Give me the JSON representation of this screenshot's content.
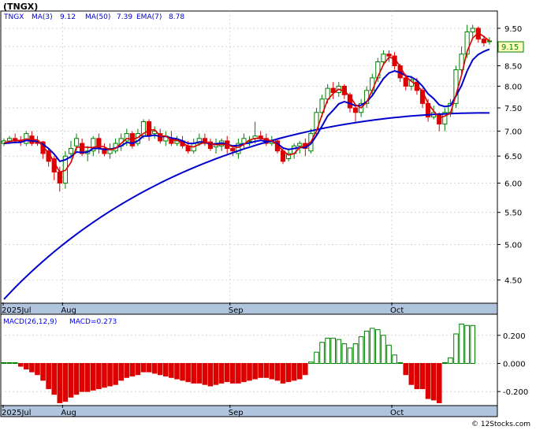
{
  "title": "(TNGX)",
  "footer": "© 12Stocks.com",
  "colors": {
    "up": "#008000",
    "down": "#dd0000",
    "ma_short": "#dd0000",
    "ma_long": "#0000cc",
    "ema": "#0000cc",
    "axis_band": "#b0c4de",
    "grid": "#bbbbbb",
    "price_tag_bg": "#ffffc0",
    "legend_text": "#0000cc",
    "macd_label_text": "#0000ff"
  },
  "chart_data": [
    {
      "type": "candlestick",
      "ticker": "TNGX",
      "legend": {
        "ticker": "TNGX",
        "ma3": "MA(3)",
        "ma3_value": "9.12",
        "ma50": "MA(50)",
        "ma50_value": "7.39",
        "ema7": "EMA(7)",
        "ema7_value": "8.78"
      },
      "last_price_label": "9.15",
      "last_price": 9.15,
      "scale": "log",
      "ylim": [
        4.2,
        10.0
      ],
      "y_ticks": [
        "9.50",
        "9.00",
        "8.50",
        "8.00",
        "7.50",
        "7.00",
        "6.50",
        "6.00",
        "5.50",
        "5.00",
        "4.50"
      ],
      "x_tick_labels": [
        {
          "label": "2025Jul",
          "index": 0
        },
        {
          "label": "Aug",
          "index": 11
        },
        {
          "label": "Sep",
          "index": 41
        },
        {
          "label": "Oct",
          "index": 70
        }
      ],
      "candles": [
        [
          6.75,
          6.8,
          6.7,
          6.85
        ],
        [
          6.8,
          6.85,
          6.75,
          6.9
        ],
        [
          6.85,
          6.8,
          6.75,
          6.95
        ],
        [
          6.8,
          6.78,
          6.7,
          6.9
        ],
        [
          6.75,
          6.95,
          6.7,
          7.0
        ],
        [
          6.9,
          6.75,
          6.7,
          7.0
        ],
        [
          6.8,
          6.75,
          6.7,
          6.9
        ],
        [
          6.78,
          6.55,
          6.45,
          6.8
        ],
        [
          6.6,
          6.4,
          6.3,
          6.65
        ],
        [
          6.45,
          6.2,
          6.05,
          6.5
        ],
        [
          6.2,
          6.0,
          5.85,
          6.3
        ],
        [
          6.0,
          6.5,
          5.9,
          6.6
        ],
        [
          6.55,
          6.65,
          6.45,
          6.8
        ],
        [
          6.7,
          6.85,
          6.6,
          6.95
        ],
        [
          6.75,
          6.55,
          6.5,
          6.85
        ],
        [
          6.55,
          6.6,
          6.4,
          6.7
        ],
        [
          6.6,
          6.85,
          6.5,
          6.9
        ],
        [
          6.85,
          6.65,
          6.55,
          6.95
        ],
        [
          6.65,
          6.55,
          6.5,
          6.75
        ],
        [
          6.55,
          6.65,
          6.45,
          6.75
        ],
        [
          6.6,
          6.75,
          6.55,
          6.85
        ],
        [
          6.7,
          6.85,
          6.6,
          6.95
        ],
        [
          6.8,
          6.95,
          6.7,
          7.05
        ],
        [
          6.95,
          6.7,
          6.65,
          7.0
        ],
        [
          6.75,
          6.95,
          6.7,
          7.05
        ],
        [
          6.9,
          7.2,
          6.85,
          7.25
        ],
        [
          7.2,
          6.9,
          6.8,
          7.25
        ],
        [
          6.95,
          7.0,
          6.85,
          7.1
        ],
        [
          6.95,
          6.8,
          6.75,
          7.05
        ],
        [
          6.8,
          6.9,
          6.7,
          7.0
        ],
        [
          6.85,
          6.75,
          6.7,
          7.0
        ],
        [
          6.75,
          6.8,
          6.7,
          6.9
        ],
        [
          6.8,
          6.7,
          6.65,
          6.9
        ],
        [
          6.7,
          6.6,
          6.55,
          6.8
        ],
        [
          6.6,
          6.75,
          6.55,
          6.85
        ],
        [
          6.75,
          6.85,
          6.7,
          6.95
        ],
        [
          6.85,
          6.75,
          6.7,
          6.95
        ],
        [
          6.78,
          6.65,
          6.6,
          6.85
        ],
        [
          6.68,
          6.75,
          6.55,
          6.85
        ],
        [
          6.7,
          6.8,
          6.6,
          6.85
        ],
        [
          6.8,
          6.65,
          6.55,
          6.9
        ],
        [
          6.65,
          6.6,
          6.5,
          6.7
        ],
        [
          6.55,
          6.75,
          6.45,
          6.85
        ],
        [
          6.75,
          6.85,
          6.65,
          6.95
        ],
        [
          6.8,
          6.8,
          6.7,
          6.9
        ],
        [
          6.85,
          6.9,
          6.75,
          7.2
        ],
        [
          6.9,
          6.85,
          6.8,
          7.0
        ],
        [
          6.85,
          6.75,
          6.7,
          6.95
        ],
        [
          6.75,
          6.8,
          6.7,
          6.9
        ],
        [
          6.8,
          6.6,
          6.55,
          6.85
        ],
        [
          6.6,
          6.4,
          6.35,
          6.65
        ],
        [
          6.45,
          6.55,
          6.4,
          6.65
        ],
        [
          6.55,
          6.7,
          6.45,
          6.75
        ],
        [
          6.7,
          6.75,
          6.55,
          6.8
        ],
        [
          6.75,
          6.65,
          6.5,
          6.85
        ],
        [
          6.6,
          6.95,
          6.55,
          7.05
        ],
        [
          6.95,
          7.4,
          6.9,
          7.5
        ],
        [
          7.4,
          7.7,
          7.3,
          7.8
        ],
        [
          7.7,
          7.95,
          7.6,
          8.05
        ],
        [
          7.95,
          7.85,
          7.7,
          8.1
        ],
        [
          7.85,
          8.0,
          7.75,
          8.1
        ],
        [
          8.0,
          7.8,
          7.7,
          8.05
        ],
        [
          7.8,
          7.5,
          7.4,
          7.85
        ],
        [
          7.5,
          7.4,
          7.2,
          7.55
        ],
        [
          7.4,
          7.6,
          7.3,
          7.7
        ],
        [
          7.6,
          7.9,
          7.5,
          8.0
        ],
        [
          7.9,
          8.2,
          7.8,
          8.3
        ],
        [
          8.2,
          8.6,
          8.1,
          8.7
        ],
        [
          8.6,
          8.8,
          8.5,
          8.9
        ],
        [
          8.8,
          8.75,
          8.6,
          8.9
        ],
        [
          8.75,
          8.5,
          8.4,
          8.85
        ],
        [
          8.5,
          8.2,
          8.1,
          8.55
        ],
        [
          8.2,
          8.0,
          7.9,
          8.3
        ],
        [
          8.0,
          8.15,
          7.9,
          8.25
        ],
        [
          8.1,
          7.9,
          7.8,
          8.2
        ],
        [
          7.9,
          7.6,
          7.5,
          7.95
        ],
        [
          7.6,
          7.3,
          7.2,
          7.7
        ],
        [
          7.3,
          7.4,
          7.25,
          7.55
        ],
        [
          7.35,
          7.15,
          7.0,
          7.4
        ],
        [
          7.15,
          7.4,
          7.0,
          7.5
        ],
        [
          7.4,
          7.6,
          7.3,
          7.7
        ],
        [
          7.6,
          8.4,
          7.5,
          8.5
        ],
        [
          8.4,
          8.8,
          8.3,
          9.0
        ],
        [
          8.8,
          9.4,
          8.7,
          9.6
        ],
        [
          9.4,
          9.5,
          9.2,
          9.6
        ],
        [
          9.5,
          9.2,
          9.1,
          9.55
        ],
        [
          9.2,
          9.1,
          9.0,
          9.3
        ],
        [
          9.15,
          9.15,
          9.05,
          9.25
        ]
      ],
      "ma3": [
        6.76,
        6.79,
        6.81,
        6.81,
        6.84,
        6.83,
        6.82,
        6.68,
        6.57,
        6.38,
        6.2,
        6.23,
        6.38,
        6.67,
        6.68,
        6.67,
        6.67,
        6.7,
        6.68,
        6.62,
        6.65,
        6.75,
        6.85,
        6.83,
        6.87,
        6.95,
        7.02,
        7.03,
        6.9,
        6.9,
        6.82,
        6.82,
        6.75,
        6.7,
        6.68,
        6.73,
        6.78,
        6.75,
        6.72,
        6.73,
        6.73,
        6.68,
        6.67,
        6.73,
        6.82,
        6.85,
        6.85,
        6.83,
        6.8,
        6.72,
        6.6,
        6.52,
        6.55,
        6.67,
        6.7,
        6.78,
        7.0,
        7.35,
        7.68,
        7.83,
        7.93,
        7.88,
        7.77,
        7.57,
        7.5,
        7.63,
        7.9,
        8.23,
        8.53,
        8.72,
        8.68,
        8.48,
        8.23,
        8.12,
        8.02,
        7.88,
        7.6,
        7.43,
        7.28,
        7.32,
        7.38,
        7.8,
        8.27,
        8.87,
        9.23,
        9.37,
        9.27,
        9.15
      ],
      "ema7": [
        6.75,
        6.76,
        6.77,
        6.77,
        6.81,
        6.8,
        6.79,
        6.73,
        6.65,
        6.54,
        6.4,
        6.43,
        6.49,
        6.58,
        6.57,
        6.58,
        6.65,
        6.65,
        6.63,
        6.63,
        6.66,
        6.7,
        6.77,
        6.75,
        6.8,
        6.9,
        6.9,
        6.92,
        6.89,
        6.89,
        6.86,
        6.84,
        6.8,
        6.75,
        6.75,
        6.78,
        6.77,
        6.74,
        6.74,
        6.76,
        6.73,
        6.7,
        6.71,
        6.74,
        6.76,
        6.79,
        6.81,
        6.79,
        6.79,
        6.75,
        6.66,
        6.63,
        6.65,
        6.67,
        6.67,
        6.74,
        6.91,
        7.11,
        7.32,
        7.45,
        7.59,
        7.64,
        7.6,
        7.55,
        7.56,
        7.64,
        7.78,
        7.98,
        8.18,
        8.32,
        8.37,
        8.33,
        8.25,
        8.22,
        8.14,
        8.0,
        7.82,
        7.71,
        7.57,
        7.53,
        7.55,
        7.77,
        8.02,
        8.37,
        8.65,
        8.79,
        8.87,
        8.93
      ]
    },
    {
      "type": "bar",
      "label": "MACD(26,12,9)",
      "value_label": "MACD=0.273",
      "ylim": [
        -0.3,
        0.35
      ],
      "y_ticks": [
        "0.200",
        "0.000",
        "-0.200"
      ],
      "x_tick_labels": [
        {
          "label": "2025Jul",
          "index": 0
        },
        {
          "label": "Aug",
          "index": 11
        },
        {
          "label": "Sep",
          "index": 41
        },
        {
          "label": "Oct",
          "index": 70
        }
      ],
      "values": [
        0.0,
        0.005,
        0.002,
        -0.02,
        -0.04,
        -0.06,
        -0.08,
        -0.12,
        -0.18,
        -0.22,
        -0.28,
        -0.27,
        -0.24,
        -0.22,
        -0.2,
        -0.2,
        -0.19,
        -0.18,
        -0.17,
        -0.16,
        -0.15,
        -0.12,
        -0.1,
        -0.09,
        -0.08,
        -0.06,
        -0.06,
        -0.07,
        -0.08,
        -0.09,
        -0.1,
        -0.11,
        -0.12,
        -0.13,
        -0.14,
        -0.14,
        -0.15,
        -0.16,
        -0.15,
        -0.14,
        -0.13,
        -0.14,
        -0.14,
        -0.13,
        -0.12,
        -0.11,
        -0.1,
        -0.1,
        -0.11,
        -0.12,
        -0.14,
        -0.13,
        -0.12,
        -0.11,
        -0.08,
        0.01,
        0.08,
        0.15,
        0.18,
        0.18,
        0.17,
        0.14,
        0.11,
        0.14,
        0.19,
        0.23,
        0.25,
        0.24,
        0.2,
        0.13,
        0.06,
        0.0,
        -0.08,
        -0.15,
        -0.18,
        -0.18,
        -0.25,
        -0.26,
        -0.28,
        0.0,
        0.04,
        0.21,
        0.28,
        0.27,
        0.27
      ]
    }
  ]
}
